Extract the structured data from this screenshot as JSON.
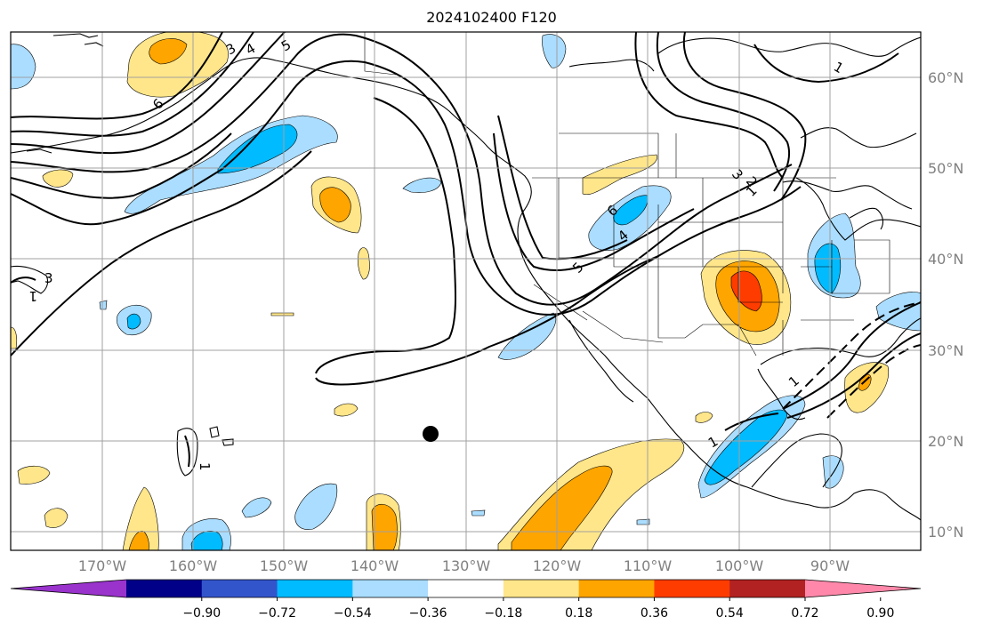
{
  "title": "2024102400 F120",
  "map": {
    "longitude_ticks": [
      "170°W",
      "160°W",
      "150°W",
      "140°W",
      "130°W",
      "120°W",
      "110°W",
      "100°W",
      "90°W"
    ],
    "latitude_ticks": [
      "60°N",
      "50°N",
      "40°N",
      "30°N",
      "20°N",
      "10°N"
    ],
    "gridlines": true,
    "marker": {
      "name": "point-marker",
      "lon": -134,
      "lat": 20.7
    }
  },
  "contour_labels": [
    "3",
    "4",
    "5",
    "6",
    "3",
    "1",
    "1",
    "6",
    "4",
    "5",
    "3",
    "2",
    "1",
    "1",
    "1",
    "1"
  ],
  "colorbar": {
    "labels": [
      "−0.90",
      "−0.72",
      "−0.54",
      "−0.36",
      "−0.18",
      "0.18",
      "0.36",
      "0.54",
      "0.72",
      "0.90"
    ],
    "colors": [
      "#9933cc",
      "#000088",
      "#3355cc",
      "#00bbff",
      "#aaddff",
      "#ffffff",
      "#ffe68a",
      "#ffa500",
      "#ff3c00",
      "#b22222",
      "#ff88aa"
    ],
    "extend": "both"
  },
  "palette": {
    "light_blue": "#aaddff",
    "blue": "#00bbff",
    "light_yellow": "#ffe68a",
    "orange": "#ffa500",
    "red_orange": "#ff3c00",
    "grid": "#a0a0a0",
    "tick_text": "#808080"
  }
}
